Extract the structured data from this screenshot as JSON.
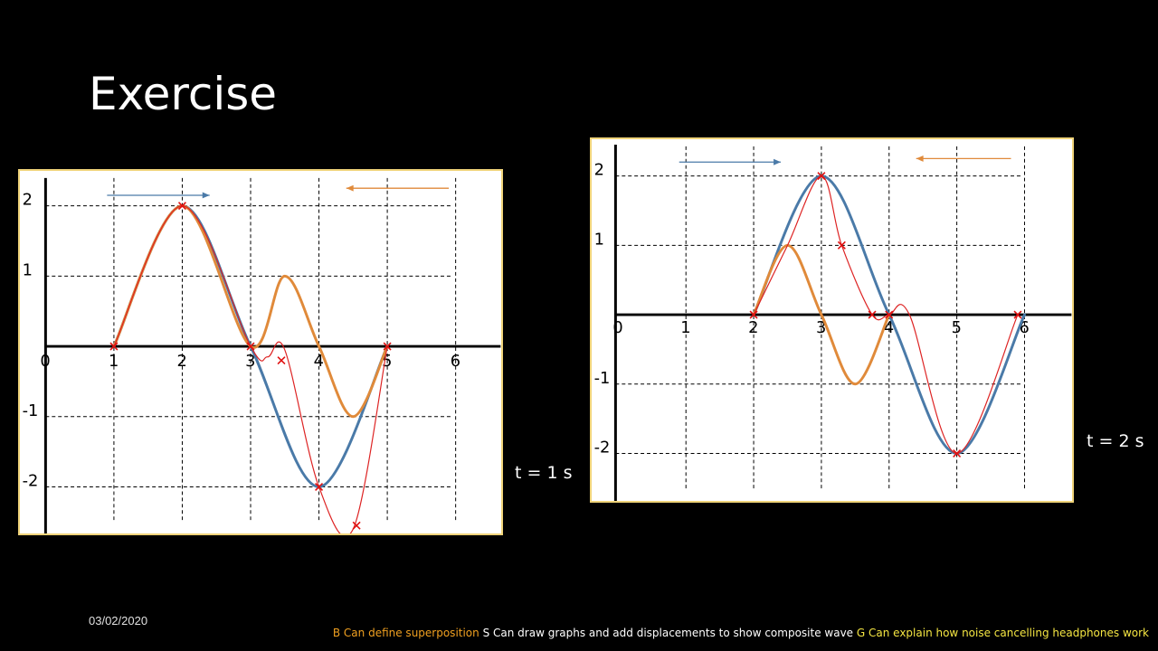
{
  "slide": {
    "title": "Exercise",
    "date": "03/02/2020",
    "objectives": {
      "b": "B Can define superposition",
      "s": "S Can draw graphs and add displacements to show composite wave",
      "g": "G Can explain how noise cancelling headphones work"
    },
    "colors": {
      "background": "#000000",
      "wave_right_moving": "#4a7aa8",
      "wave_left_moving": "#e08a3a",
      "composite": "#dd2222",
      "panel_border": "#f0d47a"
    }
  },
  "chart_data": [
    {
      "type": "line",
      "time_label": "t = 1 s",
      "x_ticks": [
        "0",
        "1",
        "2",
        "3",
        "4",
        "5",
        "6"
      ],
      "y_ticks": [
        "2",
        "1",
        "-1",
        "-2"
      ],
      "xlim": [
        0,
        6
      ],
      "ylim": [
        -2.5,
        2
      ],
      "grid": true,
      "arrows": {
        "blue": {
          "from": 0.9,
          "to": 2.4,
          "y": 2.15,
          "direction": "right"
        },
        "orange": {
          "from": 5.9,
          "to": 4.4,
          "y": 2.25,
          "direction": "left"
        }
      },
      "series": [
        {
          "color": "blue",
          "x": [
            1,
            2,
            3,
            4,
            5
          ],
          "y": [
            0,
            2,
            0,
            -2,
            0
          ]
        },
        {
          "color": "orange",
          "x": [
            1,
            2,
            3,
            3.5,
            4,
            4.5,
            5
          ],
          "y": [
            0,
            2,
            0,
            1,
            0,
            -1,
            0
          ]
        },
        {
          "color": "red",
          "x": [
            1,
            2,
            3,
            3.25,
            3.5,
            4,
            4.5,
            5
          ],
          "y": [
            0,
            2,
            0,
            -0.15,
            -0.05,
            -2,
            -2.6,
            0
          ]
        }
      ],
      "markers": {
        "x": [
          1,
          2,
          3,
          3.45,
          4,
          4.55,
          5
        ],
        "y": [
          0,
          2,
          0,
          -0.2,
          -2,
          -2.55,
          0
        ]
      }
    },
    {
      "type": "line",
      "time_label": "t = 2 s",
      "x_ticks": [
        "0",
        "1",
        "2",
        "3",
        "4",
        "5",
        "6"
      ],
      "y_ticks": [
        "2",
        "1",
        "-1",
        "-2"
      ],
      "xlim": [
        0,
        6
      ],
      "ylim": [
        -2,
        2
      ],
      "grid": true,
      "arrows": {
        "blue": {
          "from": 0.9,
          "to": 2.4,
          "y": 2.2,
          "direction": "right"
        },
        "orange": {
          "from": 5.8,
          "to": 4.4,
          "y": 2.25,
          "direction": "left"
        }
      },
      "series": [
        {
          "color": "blue",
          "x": [
            2,
            3,
            4,
            5,
            6
          ],
          "y": [
            0,
            2,
            0,
            -2,
            0
          ]
        },
        {
          "color": "orange",
          "x": [
            2,
            2.5,
            3,
            3.5,
            4
          ],
          "y": [
            0,
            1,
            0,
            -1,
            0
          ]
        },
        {
          "color": "red",
          "x": [
            2,
            2.5,
            3,
            3.3,
            3.75,
            4,
            4.3,
            5,
            5.9
          ],
          "y": [
            0,
            1,
            2,
            1,
            0,
            0,
            0,
            -2,
            0
          ]
        }
      ],
      "markers": {
        "x": [
          2,
          3,
          3.3,
          3.75,
          4,
          5,
          5.9
        ],
        "y": [
          0,
          2,
          1,
          0,
          0,
          -2,
          0
        ]
      }
    }
  ]
}
